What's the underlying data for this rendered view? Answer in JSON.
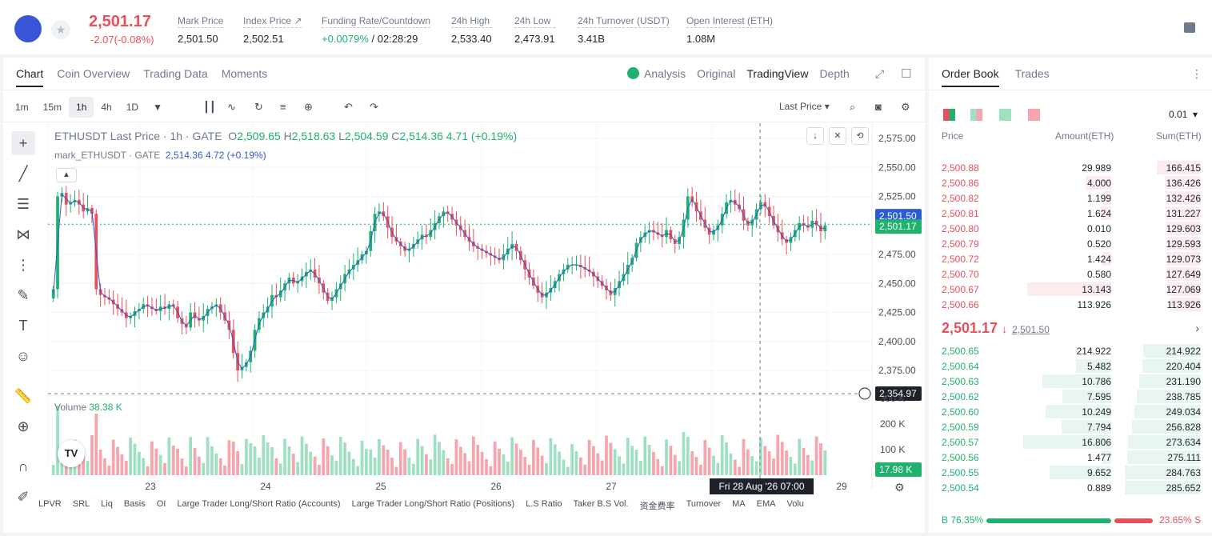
{
  "header": {
    "price": "2,501.17",
    "change": "-2.07(-0.08%)",
    "stats": [
      {
        "label": "Mark Price",
        "value": "2,501.50"
      },
      {
        "label": "Index Price ↗",
        "value": "2,502.51"
      },
      {
        "label": "Funding Rate/Countdown",
        "value_green": "+0.0079%",
        "value": " / 02:28:29"
      },
      {
        "label": "24h High",
        "value": "2,533.40"
      },
      {
        "label": "24h Low",
        "value": "2,473.91"
      },
      {
        "label": "24h Turnover (USDT)",
        "value": "3.41B"
      },
      {
        "label": "Open Interest (ETH)",
        "value": "1.08M"
      }
    ]
  },
  "chart_tabs": [
    "Chart",
    "Coin Overview",
    "Trading Data",
    "Moments"
  ],
  "view_tabs": {
    "analysis": "Analysis",
    "original": "Original",
    "tradingview": "TradingView",
    "depth": "Depth"
  },
  "intervals": [
    "1m",
    "15m",
    "1h",
    "4h",
    "1D"
  ],
  "price_type": "Last Price",
  "legend": {
    "title": "ETHUSDT Last Price · 1h · GATE",
    "o": "2,509.65",
    "h": "2,518.63",
    "l": "2,504.59",
    "c": "2,514.36",
    "chg": "4.71 (+0.19%)",
    "mark_name": "mark_ETHUSDT · GATE",
    "mark_val": "2,514.36 4.72 (+0.19%)"
  },
  "volume": {
    "label": "Volume",
    "value": "38.38 K",
    "badge": "17.98 K"
  },
  "chart_data": {
    "type": "candlestick",
    "y_ticks": [
      "2,575.00",
      "2,550.00",
      "2,525.00",
      "2,500.00",
      "2,475.00",
      "2,450.00",
      "2,425.00",
      "2,400.00",
      "2,375.00"
    ],
    "ylim": [
      2355,
      2575
    ],
    "vol_ticks": [
      "300 K",
      "200 K",
      "100 K"
    ],
    "x_ticks": [
      "23",
      "24",
      "25",
      "26",
      "27",
      "29"
    ],
    "mark_price": "2,501.50",
    "last_price": "2,501.17",
    "cursor_price": "2,354.97",
    "cursor_time": "Fri 28 Aug '26   07:00",
    "closes": [
      2445,
      2525,
      2528,
      2518,
      2520,
      2522,
      2518,
      2512,
      2515,
      2510,
      2445,
      2440,
      2438,
      2436,
      2432,
      2428,
      2425,
      2420,
      2422,
      2426,
      2428,
      2432,
      2430,
      2428,
      2426,
      2430,
      2428,
      2432,
      2430,
      2420,
      2415,
      2412,
      2425,
      2420,
      2418,
      2422,
      2428,
      2430,
      2432,
      2425,
      2418,
      2410,
      2390,
      2375,
      2378,
      2382,
      2392,
      2410,
      2420,
      2425,
      2430,
      2440,
      2438,
      2444,
      2450,
      2455,
      2450,
      2452,
      2456,
      2460,
      2462,
      2455,
      2450,
      2442,
      2435,
      2438,
      2445,
      2450,
      2458,
      2462,
      2466,
      2470,
      2475,
      2478,
      2495,
      2510,
      2512,
      2508,
      2498,
      2490,
      2486,
      2482,
      2478,
      2480,
      2484,
      2488,
      2492,
      2490,
      2496,
      2502,
      2508,
      2512,
      2510,
      2505,
      2500,
      2496,
      2490,
      2486,
      2482,
      2480,
      2478,
      2476,
      2474,
      2472,
      2470,
      2475,
      2480,
      2484,
      2478,
      2470,
      2462,
      2455,
      2448,
      2442,
      2438,
      2442,
      2446,
      2452,
      2458,
      2462,
      2466,
      2466,
      2466,
      2464,
      2462,
      2460,
      2456,
      2452,
      2448,
      2444,
      2440,
      2446,
      2452,
      2458,
      2466,
      2472,
      2485,
      2490,
      2494,
      2496,
      2494,
      2492,
      2490,
      2496,
      2488,
      2484,
      2490,
      2505,
      2525,
      2520,
      2512,
      2505,
      2498,
      2492,
      2496,
      2500,
      2510,
      2520,
      2522,
      2518,
      2514,
      2504,
      2500,
      2505,
      2514,
      2520,
      2516,
      2508,
      2500,
      2494,
      2488,
      2485,
      2490,
      2496,
      2502,
      2500,
      2498,
      2504,
      2500,
      2495,
      2500
    ]
  },
  "status_bar": [
    "LPVR",
    "SRL",
    "Liq",
    "Basis",
    "OI",
    "Large Trader Long/Short Ratio (Accounts)",
    "Large Trader Long/Short Ratio (Positions)",
    "L.S Ratio",
    "Taker B.S Vol.",
    "资金费率",
    "Turnover",
    "MA",
    "EMA",
    "Volu"
  ],
  "orderbook": {
    "tabs": [
      "Order Book",
      "Trades"
    ],
    "tick": "0.01",
    "headers": [
      "Price",
      "Amount(ETH)",
      "Sum(ETH)"
    ],
    "asks": [
      [
        "2,500.88",
        "29.989",
        "166.415"
      ],
      [
        "2,500.86",
        "4.000",
        "136.426"
      ],
      [
        "2,500.82",
        "1.199",
        "132.426"
      ],
      [
        "2,500.81",
        "1.624",
        "131.227"
      ],
      [
        "2,500.80",
        "0.010",
        "129.603"
      ],
      [
        "2,500.79",
        "0.520",
        "129.593"
      ],
      [
        "2,500.72",
        "1.424",
        "129.073"
      ],
      [
        "2,500.70",
        "0.580",
        "127.649"
      ],
      [
        "2,500.67",
        "13.143",
        "127.069"
      ],
      [
        "2,500.66",
        "113.926",
        "113.926"
      ]
    ],
    "last": "2,501.17",
    "last_mark": "2,501.50",
    "bids": [
      [
        "2,500.65",
        "214.922",
        "214.922"
      ],
      [
        "2,500.64",
        "5.482",
        "220.404"
      ],
      [
        "2,500.63",
        "10.786",
        "231.190"
      ],
      [
        "2,500.62",
        "7.595",
        "238.785"
      ],
      [
        "2,500.60",
        "10.249",
        "249.034"
      ],
      [
        "2,500.59",
        "7.794",
        "256.828"
      ],
      [
        "2,500.57",
        "16.806",
        "273.634"
      ],
      [
        "2,500.56",
        "1.477",
        "275.111"
      ],
      [
        "2,500.55",
        "9.652",
        "284.763"
      ],
      [
        "2,500.54",
        "0.889",
        "285.652"
      ]
    ],
    "buy_pct": "B 76.35%",
    "sell_pct": "23.65% S"
  },
  "colors": {
    "up": "#20b26c",
    "down": "#e8505b",
    "mark": "#2a5ad6"
  }
}
